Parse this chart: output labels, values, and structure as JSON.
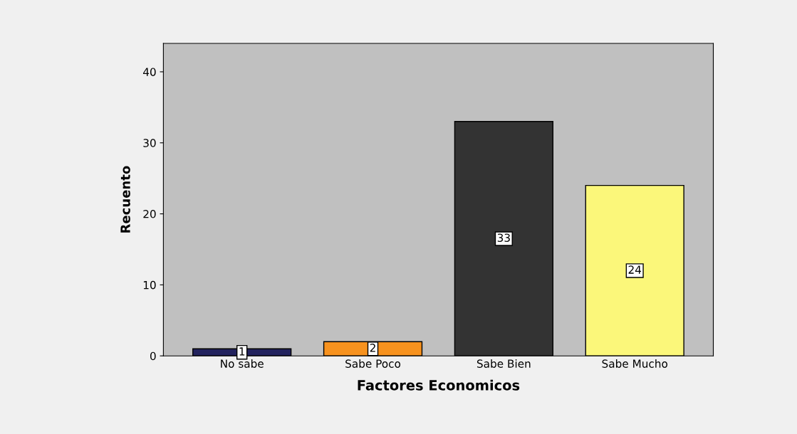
{
  "chart_data": {
    "type": "bar",
    "xlabel": "Factores Economicos",
    "ylabel": "Recuento",
    "categories": [
      "No sabe",
      "Sabe Poco",
      "Sabe Bien",
      "Sabe Mucho"
    ],
    "values": [
      1,
      2,
      33,
      24
    ],
    "colors": [
      "#23235e",
      "#f7921e",
      "#333333",
      "#fbf77a"
    ],
    "ylim": [
      0,
      44
    ],
    "yticks": [
      0,
      10,
      20,
      30,
      40
    ],
    "grid": false,
    "data_labels": true
  }
}
